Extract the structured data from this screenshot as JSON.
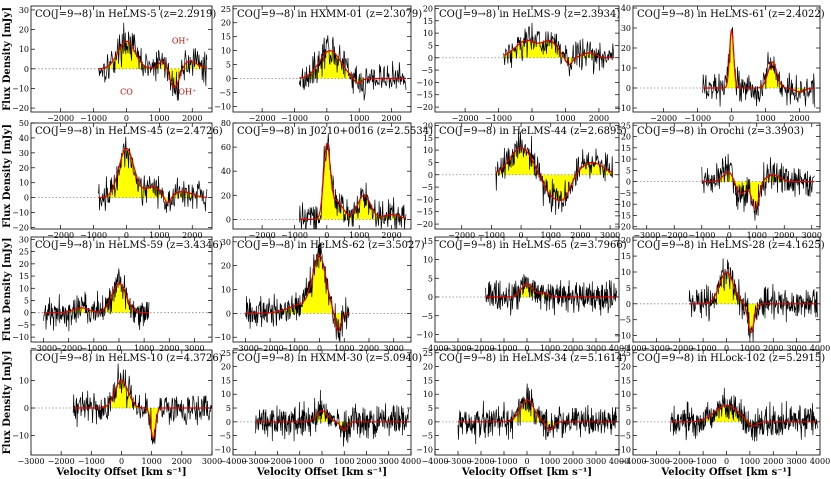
{
  "figure": {
    "x_label": "Velocity Offset [km s⁻¹]",
    "y_label": "Flux Density [mJy]",
    "colors": {
      "spectrum_line": "#000000",
      "fill": "#ffff00",
      "fit": "#e00000",
      "zero_line": "#888888",
      "annotation": "#d40000"
    }
  },
  "chart_data": [
    {
      "type": "line",
      "title": "CO(J=9→8) in HeLMS-5 (z=2.2919)",
      "xlim": [
        -2900,
        2600
      ],
      "ylim": [
        -22,
        32
      ],
      "x_ticks": [
        -2000,
        -1000,
        0,
        1000,
        2000
      ],
      "y_ticks": [
        -20,
        -10,
        0,
        10,
        20,
        30
      ],
      "data_range": [
        -850,
        2450
      ],
      "series": [
        {
          "name": "fit",
          "components": [
            {
              "v": 0,
              "amp": 14,
              "sigma": 260
            },
            {
              "v": 1150,
              "amp": 5,
              "sigma": 150
            },
            {
              "v": 1450,
              "amp": -11,
              "sigma": 160
            },
            {
              "v": 1900,
              "amp": 4,
              "sigma": 250
            }
          ]
        }
      ],
      "annotations": [
        {
          "text": "CO",
          "x": 0,
          "y": -13
        },
        {
          "text": "OH⁺",
          "x": 1650,
          "y": 13
        },
        {
          "text": "OH⁺",
          "x": 1850,
          "y": -13
        }
      ]
    },
    {
      "type": "line",
      "title": "CO(J=9→8) in HXMM-01 (z=2.3079)",
      "xlim": [
        -2900,
        2600
      ],
      "ylim": [
        -12,
        26
      ],
      "x_ticks": [
        -2000,
        -1000,
        0,
        1000,
        2000
      ],
      "y_ticks": [
        -10,
        -5,
        0,
        5,
        10,
        15,
        20,
        25
      ],
      "data_range": [
        -850,
        2450
      ],
      "series": [
        {
          "name": "fit",
          "components": [
            {
              "v": 100,
              "amp": 10,
              "sigma": 330
            },
            {
              "v": 950,
              "amp": -2,
              "sigma": 120
            }
          ]
        }
      ],
      "annotations": []
    },
    {
      "type": "line",
      "title": "CO(J=9→8) in HeLMS-9 (z=2.3934)",
      "xlim": [
        -2900,
        2600
      ],
      "ylim": [
        -22,
        21
      ],
      "x_ticks": [
        -2000,
        -1000,
        0,
        1000,
        2000
      ],
      "y_ticks": [
        -20,
        -15,
        -10,
        -5,
        0,
        5,
        10,
        15,
        20
      ],
      "data_range": [
        -850,
        2450
      ],
      "series": [
        {
          "name": "fit",
          "components": [
            {
              "v": -150,
              "amp": 7,
              "sigma": 350
            },
            {
              "v": 550,
              "amp": 6,
              "sigma": 220
            },
            {
              "v": 1100,
              "amp": -3,
              "sigma": 100
            },
            {
              "v": 1700,
              "amp": 2,
              "sigma": 200
            }
          ]
        }
      ],
      "annotations": []
    },
    {
      "type": "line",
      "title": "CO(J=9→8) in HeLMS-61 (z=2.4022)",
      "xlim": [
        -2900,
        2600
      ],
      "ylim": [
        -12,
        41
      ],
      "x_ticks": [
        -2000,
        -1000,
        0,
        1000,
        2000
      ],
      "y_ticks": [
        -10,
        0,
        10,
        20,
        30,
        40
      ],
      "data_range": [
        -850,
        2450
      ],
      "series": [
        {
          "name": "fit",
          "components": [
            {
              "v": 0,
              "amp": 29,
              "sigma": 60
            },
            {
              "v": 1200,
              "amp": 13,
              "sigma": 130
            },
            {
              "v": 2000,
              "amp": -2,
              "sigma": 150
            }
          ]
        }
      ],
      "annotations": []
    },
    {
      "type": "line",
      "title": "CO(J=9→8) in HeLMS-45 (z=2.4726)",
      "xlim": [
        -2900,
        2600
      ],
      "ylim": [
        -21,
        50
      ],
      "x_ticks": [
        -2000,
        -1000,
        0,
        1000,
        2000
      ],
      "y_ticks": [
        -20,
        -10,
        0,
        10,
        20,
        30,
        40,
        50
      ],
      "data_range": [
        -850,
        2450
      ],
      "series": [
        {
          "name": "fit",
          "components": [
            {
              "v": 0,
              "amp": 33,
              "sigma": 230
            },
            {
              "v": 800,
              "amp": 7,
              "sigma": 250
            },
            {
              "v": 1250,
              "amp": -6,
              "sigma": 100
            },
            {
              "v": 1700,
              "amp": 4,
              "sigma": 300
            }
          ]
        }
      ],
      "annotations": []
    },
    {
      "type": "line",
      "title": "CO(J=9→8) in J0210+0016 (z=2.5534)",
      "xlim": [
        -2900,
        2600
      ],
      "ylim": [
        -8,
        80
      ],
      "x_ticks": [
        -2000,
        -1000,
        0,
        1000,
        2000
      ],
      "y_ticks": [
        0,
        20,
        40,
        60,
        80
      ],
      "data_range": [
        -850,
        2450
      ],
      "series": [
        {
          "name": "fit",
          "components": [
            {
              "v": 0,
              "amp": 58,
              "sigma": 100
            },
            {
              "v": 300,
              "amp": 15,
              "sigma": 200
            },
            {
              "v": 1150,
              "amp": 20,
              "sigma": 200
            },
            {
              "v": 2000,
              "amp": 4,
              "sigma": 250
            }
          ]
        }
      ],
      "annotations": []
    },
    {
      "type": "line",
      "title": "CO(J=9→8) in HeLMS-44 (z=2.6895)",
      "xlim": [
        -2900,
        3300
      ],
      "ylim": [
        -22,
        21
      ],
      "x_ticks": [
        -2000,
        -1000,
        0,
        1000,
        2000,
        3000
      ],
      "y_ticks": [
        -20,
        -15,
        -10,
        -5,
        0,
        5,
        10,
        15,
        20
      ],
      "data_range": [
        -850,
        3100
      ],
      "series": [
        {
          "name": "fit",
          "components": [
            {
              "v": 0,
              "amp": 11,
              "sigma": 380
            },
            {
              "v": 1100,
              "amp": -9,
              "sigma": 330
            },
            {
              "v": 1500,
              "amp": -5,
              "sigma": 200
            },
            {
              "v": 2400,
              "amp": 5,
              "sigma": 380
            }
          ]
        }
      ],
      "annotations": []
    },
    {
      "type": "line",
      "title": "CO(J=9→8) in Orochi (z=3.3903)",
      "xlim": [
        -3500,
        3300
      ],
      "ylim": [
        -21,
        26
      ],
      "x_ticks": [
        -3000,
        -2000,
        -1000,
        0,
        1000,
        2000,
        3000
      ],
      "y_ticks": [
        -20,
        -15,
        -10,
        -5,
        0,
        5,
        10,
        15,
        20,
        25
      ],
      "data_range": [
        -1000,
        3100
      ],
      "series": [
        {
          "name": "fit",
          "components": [
            {
              "v": 0,
              "amp": 5,
              "sigma": 200
            },
            {
              "v": 400,
              "amp": -6,
              "sigma": 200
            },
            {
              "v": 950,
              "amp": -12,
              "sigma": 130
            },
            {
              "v": 1600,
              "amp": 3,
              "sigma": 250
            }
          ]
        }
      ],
      "annotations": []
    },
    {
      "type": "line",
      "title": "CO(J=9→8) in HeLMS-59 (z=3.4346)",
      "xlim": [
        -3500,
        3700
      ],
      "ylim": [
        -12,
        31
      ],
      "x_ticks": [
        -3000,
        -2000,
        -1000,
        0,
        1000,
        2000,
        3000
      ],
      "y_ticks": [
        -10,
        -5,
        0,
        5,
        10,
        15,
        20,
        25,
        30
      ],
      "data_range": [
        -3000,
        1200
      ],
      "series": [
        {
          "name": "fit",
          "components": [
            {
              "v": 0,
              "amp": 12,
              "sigma": 280
            },
            {
              "v": -1500,
              "amp": 2,
              "sigma": 300
            }
          ]
        }
      ],
      "annotations": []
    },
    {
      "type": "line",
      "title": "CO(J=9→8) in HeLMS-62 (z=3.5027)",
      "xlim": [
        -3500,
        3700
      ],
      "ylim": [
        -12,
        32
      ],
      "x_ticks": [
        -3000,
        -2000,
        -1000,
        0,
        1000,
        2000,
        3000
      ],
      "y_ticks": [
        -10,
        0,
        10,
        20,
        30
      ],
      "data_range": [
        -3000,
        1200
      ],
      "series": [
        {
          "name": "fit",
          "components": [
            {
              "v": 0,
              "amp": 22,
              "sigma": 260
            },
            {
              "v": -600,
              "amp": 4,
              "sigma": 600
            },
            {
              "v": 750,
              "amp": -8,
              "sigma": 120
            }
          ]
        }
      ],
      "annotations": []
    },
    {
      "type": "line",
      "title": "CO(J=9→8) in HeLMS-65 (z=3.7966)",
      "xlim": [
        -4000,
        4000
      ],
      "ylim": [
        -12,
        16
      ],
      "x_ticks": [
        -4000,
        -3000,
        -2000,
        -1000,
        0,
        1000,
        2000,
        3000,
        4000
      ],
      "y_ticks": [
        -10,
        -5,
        0,
        5,
        10,
        15
      ],
      "data_range": [
        -1800,
        3900
      ],
      "series": [
        {
          "name": "fit",
          "components": [
            {
              "v": 0,
              "amp": 3.5,
              "sigma": 250
            },
            {
              "v": 700,
              "amp": 1,
              "sigma": 200
            }
          ]
        }
      ],
      "annotations": []
    },
    {
      "type": "line",
      "title": "CO(J=9→8) in HeLMS-28 (z=4.1625)",
      "xlim": [
        -4000,
        4000
      ],
      "ylim": [
        -12,
        21
      ],
      "x_ticks": [
        -4000,
        -3000,
        -2000,
        -1000,
        0,
        1000,
        2000,
        3000,
        4000
      ],
      "y_ticks": [
        -10,
        -5,
        0,
        5,
        10,
        15,
        20
      ],
      "data_range": [
        -1600,
        3900
      ],
      "series": [
        {
          "name": "fit",
          "components": [
            {
              "v": 0,
              "amp": 10,
              "sigma": 300
            },
            {
              "v": 1050,
              "amp": -9,
              "sigma": 130
            }
          ]
        }
      ],
      "annotations": []
    },
    {
      "type": "line",
      "title": "CO(J=9→8) in HeLMS-10 (z=4.3726)",
      "xlim": [
        -3000,
        3000
      ],
      "ylim": [
        -17,
        21
      ],
      "x_ticks": [
        -3000,
        -2000,
        -1000,
        0,
        1000,
        2000,
        3000
      ],
      "y_ticks": [
        -10,
        0,
        10
      ],
      "data_range": [
        -1600,
        3000
      ],
      "series": [
        {
          "name": "fit",
          "components": [
            {
              "v": 0,
              "amp": 10,
              "sigma": 220
            },
            {
              "v": 1050,
              "amp": -11,
              "sigma": 80
            }
          ]
        }
      ],
      "annotations": []
    },
    {
      "type": "line",
      "title": "CO(J=9→8) in HXMM-30 (z=5.0940)",
      "xlim": [
        -4000,
        4000
      ],
      "ylim": [
        -12,
        26
      ],
      "x_ticks": [
        -4000,
        -3000,
        -2000,
        -1000,
        0,
        1000,
        2000,
        3000,
        4000
      ],
      "y_ticks": [
        -10,
        -5,
        0,
        5,
        10,
        15,
        20,
        25
      ],
      "data_range": [
        -3000,
        3900
      ],
      "series": [
        {
          "name": "fit",
          "components": [
            {
              "v": 0,
              "amp": 4,
              "sigma": 250
            },
            {
              "v": 1000,
              "amp": -3,
              "sigma": 150
            }
          ]
        }
      ],
      "annotations": []
    },
    {
      "type": "line",
      "title": "CO(J=9→8) in HeLMS-34 (z=5.1614)",
      "xlim": [
        -4000,
        4000
      ],
      "ylim": [
        -12,
        26
      ],
      "x_ticks": [
        -4000,
        -3000,
        -2000,
        -1000,
        0,
        1000,
        2000,
        3000,
        4000
      ],
      "y_ticks": [
        -10,
        -5,
        0,
        5,
        10,
        15,
        20,
        25
      ],
      "data_range": [
        -3000,
        3900
      ],
      "series": [
        {
          "name": "fit",
          "components": [
            {
              "v": 0,
              "amp": 8,
              "sigma": 300
            },
            {
              "v": 1000,
              "amp": -3,
              "sigma": 150
            }
          ]
        }
      ],
      "annotations": []
    },
    {
      "type": "line",
      "title": "CO(J=9→8) in HLock-102 (z=5.2915)",
      "xlim": [
        -4000,
        4000
      ],
      "ylim": [
        -12,
        26
      ],
      "x_ticks": [
        -4000,
        -3000,
        -2000,
        -1000,
        0,
        1000,
        2000,
        3000,
        4000
      ],
      "y_ticks": [
        -10,
        -5,
        0,
        5,
        10,
        15,
        20,
        25
      ],
      "data_range": [
        -2400,
        3900
      ],
      "series": [
        {
          "name": "fit",
          "components": [
            {
              "v": 0,
              "amp": 6,
              "sigma": 500
            },
            {
              "v": 1100,
              "amp": -2,
              "sigma": 200
            }
          ]
        }
      ],
      "annotations": []
    }
  ]
}
